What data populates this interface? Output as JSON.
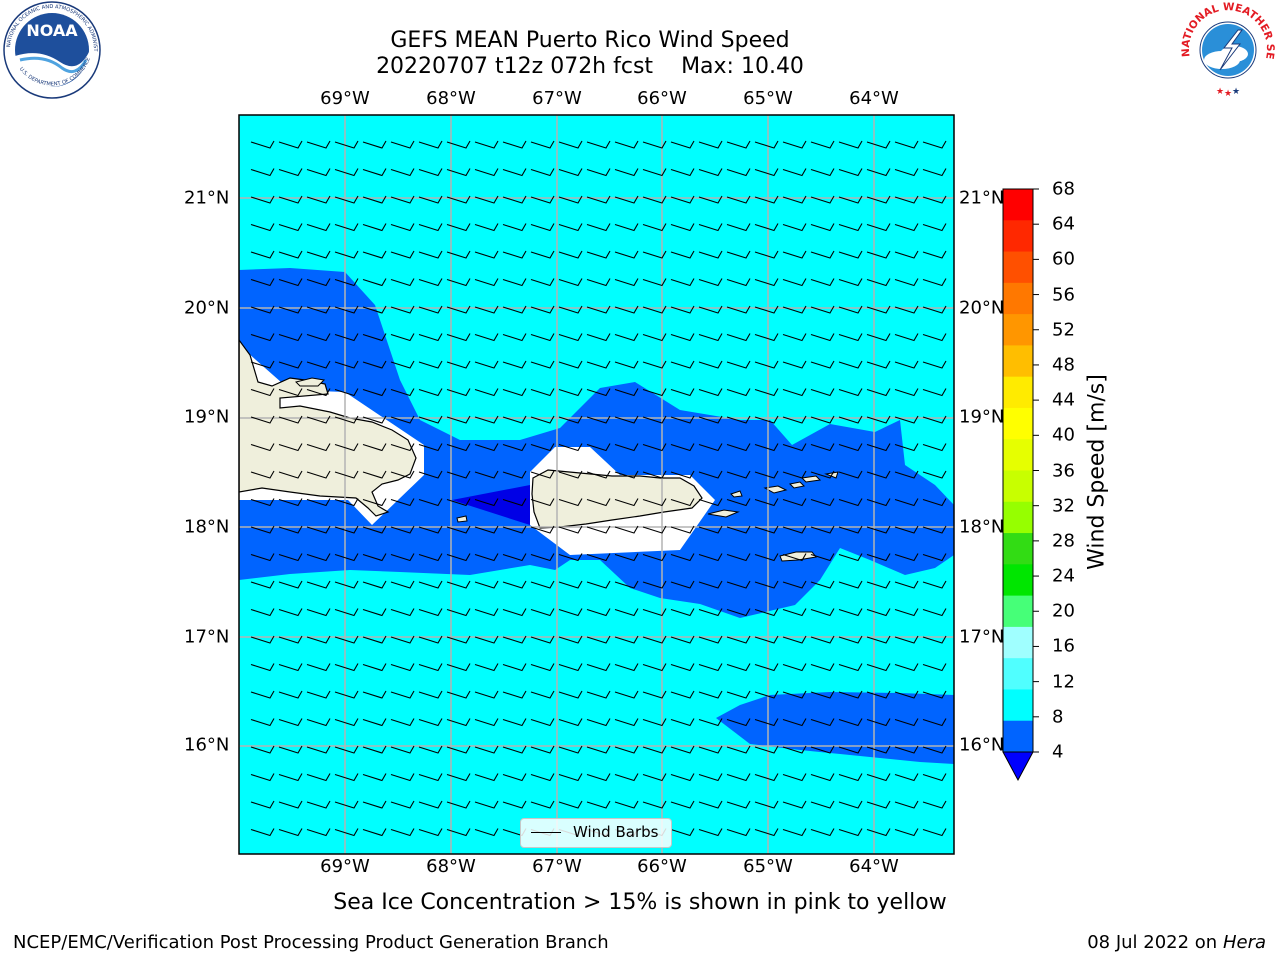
{
  "title": {
    "line1": "GEFS MEAN Puerto Rico Wind Speed",
    "line2_run": "20220707 t12z 072h fcst",
    "line2_max": "Max: 10.40"
  },
  "logos": {
    "left": {
      "name": "noaa-logo",
      "text": "NOAA",
      "ring_text": "NATIONAL OCEANIC AND ATMOSPHERIC ADMINISTRATION · U.S. DEPARTMENT OF COMMERCE"
    },
    "right": {
      "name": "nws-logo",
      "ring_text": "NATIONAL WEATHER SERVICE"
    }
  },
  "map": {
    "lon_labels": [
      "69°W",
      "68°W",
      "67°W",
      "66°W",
      "65°W",
      "64°W"
    ],
    "lat_labels": [
      "21°N",
      "20°N",
      "19°N",
      "18°N",
      "17°N",
      "16°N"
    ],
    "barb_glyph": "wind-barb-5kt-easterly",
    "colors": {
      "background_field": "#00ffff",
      "band_4_8": "#0064ff",
      "band_below_4": "#0000e6",
      "land": "#efefdc",
      "grid": "#b4b4b4"
    }
  },
  "colorbar": {
    "label": "Wind Speed [m/s]",
    "ticks": [
      "68",
      "64",
      "60",
      "56",
      "52",
      "48",
      "44",
      "40",
      "36",
      "32",
      "28",
      "24",
      "20",
      "16",
      "12",
      "8",
      "4"
    ],
    "colors": [
      "#ff0000",
      "#ff2800",
      "#ff5000",
      "#ff7800",
      "#ff9600",
      "#ffbe00",
      "#ffeb00",
      "#ffff00",
      "#e6ff00",
      "#c8ff00",
      "#96ff00",
      "#32dc14",
      "#00e600",
      "#46ff78",
      "#a0ffff",
      "#50ffff",
      "#00ffff",
      "#0064ff",
      "#0000ff"
    ]
  },
  "legend": {
    "label": "Wind Barbs"
  },
  "note": "Sea Ice Concentration > 15% is shown in pink to yellow",
  "footer": {
    "left": "NCEP/EMC/Verification Post Processing Product Generation Branch",
    "right_date": "08 Jul 2022 on",
    "right_machine": "Hera"
  }
}
